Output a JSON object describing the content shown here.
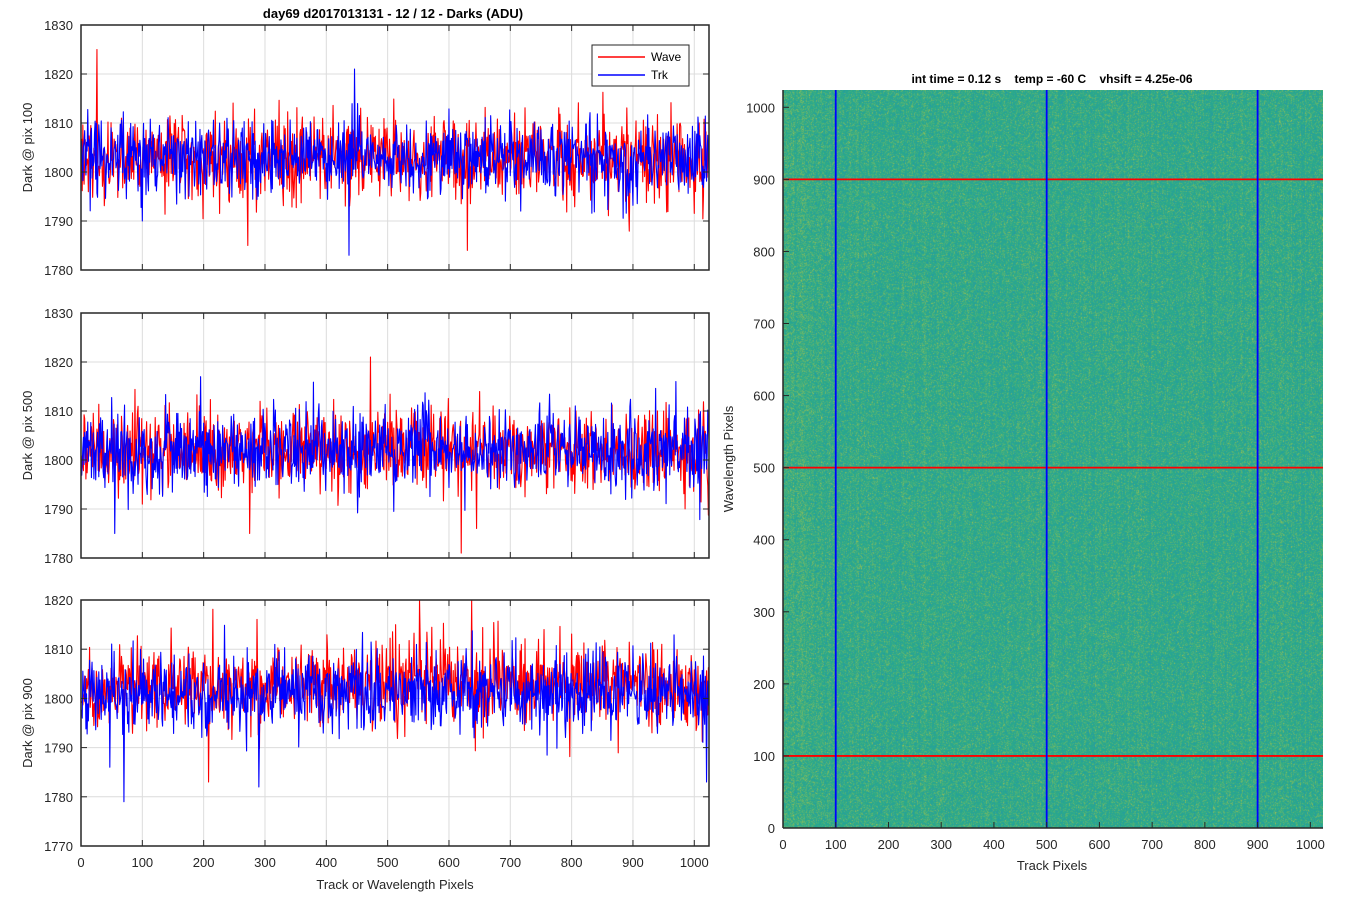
{
  "figure_title": "day69 d2017013131 - 12 / 12 - Darks (ADU)",
  "colors": {
    "wave": "#ff0000",
    "trk": "#0000ff",
    "grid": "#dcdcdc",
    "axes": "#262626"
  },
  "chart_data": [
    {
      "type": "line",
      "ylabel": "Dark @ pix 100",
      "xlabel": "",
      "xlim": [
        0,
        1024
      ],
      "ylim": [
        1780,
        1830
      ],
      "xticks": [
        0,
        100,
        200,
        300,
        400,
        500,
        600,
        700,
        800,
        900,
        1000
      ],
      "yticks": [
        1780,
        1790,
        1800,
        1810,
        1820,
        1830
      ],
      "xtick_labels_shown": false,
      "legend": {
        "position": "top-right",
        "entries": [
          "Wave",
          "Trk"
        ]
      },
      "series": [
        {
          "name": "Wave",
          "color": "#ff0000",
          "x_range": [
            1,
            1024
          ],
          "mean": 1803,
          "spread": 4.2,
          "extremes": [
            [
              26,
              1825
            ],
            [
              272,
              1785
            ],
            [
              630,
              1784
            ]
          ]
        },
        {
          "name": "Trk",
          "color": "#0000ff",
          "x_range": [
            1,
            1024
          ],
          "mean": 1803,
          "spread": 4.0,
          "extremes": [
            [
              446,
              1821
            ],
            [
              437,
              1783
            ],
            [
              100,
              1790
            ]
          ]
        }
      ]
    },
    {
      "type": "line",
      "ylabel": "Dark @ pix 500",
      "xlabel": "",
      "xlim": [
        0,
        1024
      ],
      "ylim": [
        1780,
        1830
      ],
      "xticks": [
        0,
        100,
        200,
        300,
        400,
        500,
        600,
        700,
        800,
        900,
        1000
      ],
      "yticks": [
        1780,
        1790,
        1800,
        1810,
        1820,
        1830
      ],
      "xtick_labels_shown": false,
      "series": [
        {
          "name": "Wave",
          "color": "#ff0000",
          "x_range": [
            1,
            1024
          ],
          "mean": 1802,
          "spread": 4.2,
          "extremes": [
            [
              472,
              1821
            ],
            [
              620,
              1781
            ],
            [
              275,
              1785
            ]
          ]
        },
        {
          "name": "Trk",
          "color": "#0000ff",
          "x_range": [
            1,
            1024
          ],
          "mean": 1802,
          "spread": 4.0,
          "extremes": [
            [
              55,
              1785
            ],
            [
              195,
              1817
            ],
            [
              970,
              1816
            ]
          ]
        }
      ]
    },
    {
      "type": "line",
      "ylabel": "Dark @ pix 900",
      "xlabel": "Track or Wavelength Pixels",
      "xlim": [
        0,
        1024
      ],
      "ylim": [
        1770,
        1820
      ],
      "xticks": [
        0,
        100,
        200,
        300,
        400,
        500,
        600,
        700,
        800,
        900,
        1000
      ],
      "yticks": [
        1770,
        1780,
        1790,
        1800,
        1810,
        1820
      ],
      "xtick_labels_shown": true,
      "series": [
        {
          "name": "Wave",
          "color": "#ff0000",
          "x_range": [
            1,
            1024
          ],
          "mean": 1803,
          "spread": 4.3,
          "extremes": [
            [
              552,
              1820
            ],
            [
              637,
              1820
            ],
            [
              208,
              1783
            ]
          ]
        },
        {
          "name": "Trk",
          "color": "#0000ff",
          "x_range": [
            1,
            1024
          ],
          "mean": 1801,
          "spread": 4.2,
          "extremes": [
            [
              70,
              1779
            ],
            [
              290,
              1782
            ],
            [
              1020,
              1783
            ]
          ]
        }
      ]
    },
    {
      "type": "heatmap",
      "title": "int time = 0.12 s    temp = -60 C    vhsift = 4.25e-06",
      "xlabel": "Track Pixels",
      "ylabel": "Wavelength Pixels",
      "xlim": [
        0,
        1024
      ],
      "ylim": [
        0,
        1024
      ],
      "xticks": [
        0,
        100,
        200,
        300,
        400,
        500,
        600,
        700,
        800,
        900,
        1000
      ],
      "yticks": [
        0,
        100,
        200,
        300,
        400,
        500,
        600,
        700,
        800,
        900,
        1000
      ],
      "colormap": "parula",
      "base_color": "#2aaa8a",
      "vertical_lines": {
        "color": "#0000ff",
        "x": [
          100,
          500,
          900
        ]
      },
      "horizontal_lines": {
        "color": "#ff0000",
        "y": [
          100,
          500,
          900
        ]
      }
    }
  ]
}
